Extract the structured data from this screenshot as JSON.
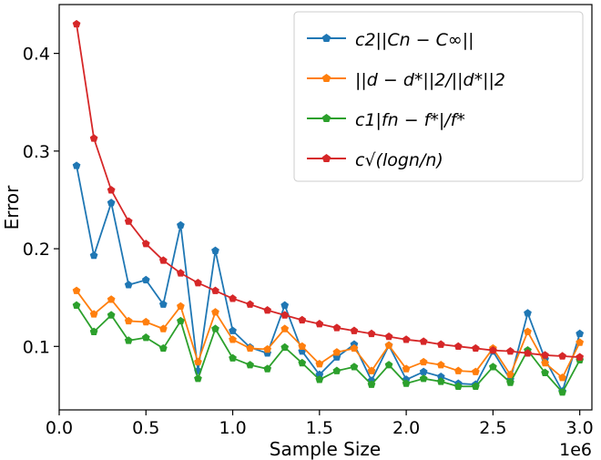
{
  "chart_data": {
    "type": "line",
    "xlabel": "Sample Size",
    "ylabel": "Error",
    "x_offset_label": "1e6",
    "xlim": [
      0,
      3.07
    ],
    "ylim": [
      0.035,
      0.45
    ],
    "x_ticks": [
      0.0,
      0.5,
      1.0,
      1.5,
      2.0,
      2.5,
      3.0
    ],
    "x_tick_labels": [
      "0.0",
      "0.5",
      "1.0",
      "1.5",
      "2.0",
      "2.5",
      "3.0"
    ],
    "y_ticks": [
      0.1,
      0.2,
      0.3,
      0.4
    ],
    "y_tick_labels": [
      "0.1",
      "0.2",
      "0.3",
      "0.4"
    ],
    "grid": false,
    "legend_position": "top-right",
    "x": [
      0.1,
      0.2,
      0.3,
      0.4,
      0.5,
      0.6,
      0.7,
      0.8,
      0.9,
      1.0,
      1.1,
      1.2,
      1.3,
      1.4,
      1.5,
      1.6,
      1.7,
      1.8,
      1.9,
      2.0,
      2.1,
      2.2,
      2.3,
      2.4,
      2.5,
      2.6,
      2.7,
      2.8,
      2.9,
      3.0
    ],
    "series": [
      {
        "name": "c2||Cn − C∞||",
        "color": "#1f77b4",
        "values": [
          0.285,
          0.193,
          0.247,
          0.163,
          0.168,
          0.143,
          0.224,
          0.075,
          0.198,
          0.116,
          0.099,
          0.093,
          0.142,
          0.095,
          0.071,
          0.089,
          0.102,
          0.065,
          0.101,
          0.066,
          0.074,
          0.069,
          0.062,
          0.061,
          0.095,
          0.066,
          0.134,
          0.087,
          0.054,
          0.113
        ]
      },
      {
        "name": "||d − d*||2/||d*||2",
        "color": "#ff7f0e",
        "values": [
          0.157,
          0.133,
          0.148,
          0.126,
          0.125,
          0.118,
          0.141,
          0.084,
          0.135,
          0.107,
          0.098,
          0.097,
          0.118,
          0.1,
          0.082,
          0.094,
          0.098,
          0.075,
          0.101,
          0.077,
          0.084,
          0.081,
          0.075,
          0.074,
          0.098,
          0.071,
          0.115,
          0.083,
          0.068,
          0.104
        ]
      },
      {
        "name": "c1|fn − f*|/f*",
        "color": "#2ca02c",
        "values": [
          0.142,
          0.115,
          0.132,
          0.106,
          0.109,
          0.098,
          0.126,
          0.067,
          0.118,
          0.088,
          0.081,
          0.077,
          0.099,
          0.083,
          0.066,
          0.075,
          0.079,
          0.061,
          0.081,
          0.062,
          0.067,
          0.064,
          0.059,
          0.059,
          0.079,
          0.063,
          0.096,
          0.073,
          0.053,
          0.086
        ]
      },
      {
        "name": "c√(logn/n)",
        "color": "#d62728",
        "values": [
          0.43,
          0.313,
          0.26,
          0.228,
          0.205,
          0.188,
          0.175,
          0.165,
          0.157,
          0.149,
          0.143,
          0.137,
          0.132,
          0.127,
          0.123,
          0.119,
          0.116,
          0.113,
          0.11,
          0.107,
          0.105,
          0.102,
          0.1,
          0.098,
          0.096,
          0.095,
          0.093,
          0.091,
          0.09,
          0.089
        ]
      }
    ]
  }
}
